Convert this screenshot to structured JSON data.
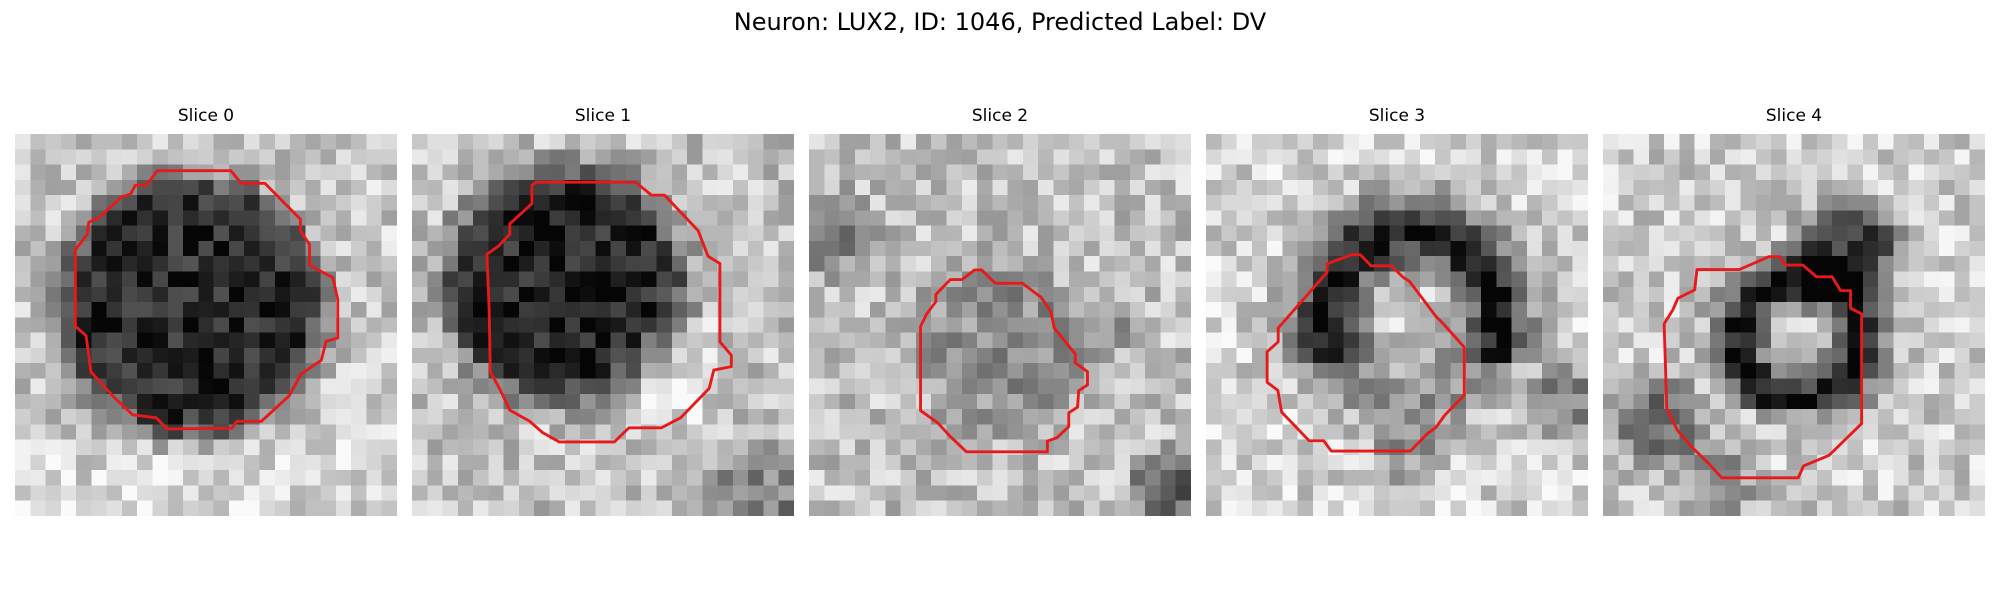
{
  "figure": {
    "title": "Neuron: LUX2, ID: 1046, Predicted Label: DV"
  },
  "colors": {
    "contour": "#e8191a",
    "background": "#ffffff"
  },
  "panels": [
    {
      "title": "Slice 0",
      "description": "grayscale microscopy patch; dark round soma centered with red contour outline"
    },
    {
      "title": "Slice 1",
      "description": "grayscale microscopy patch; dark soma upper-left, lighter region lower-right, red contour outline"
    },
    {
      "title": "Slice 2",
      "description": "grayscale microscopy patch; mostly light noisy texture, small red contour in center"
    },
    {
      "title": "Slice 3",
      "description": "grayscale microscopy patch; dark crescent ring upper area, red contour lower-left"
    },
    {
      "title": "Slice 4",
      "description": "grayscale microscopy patch; dark ring with light center upper-right, red contour lower-left"
    }
  ]
}
